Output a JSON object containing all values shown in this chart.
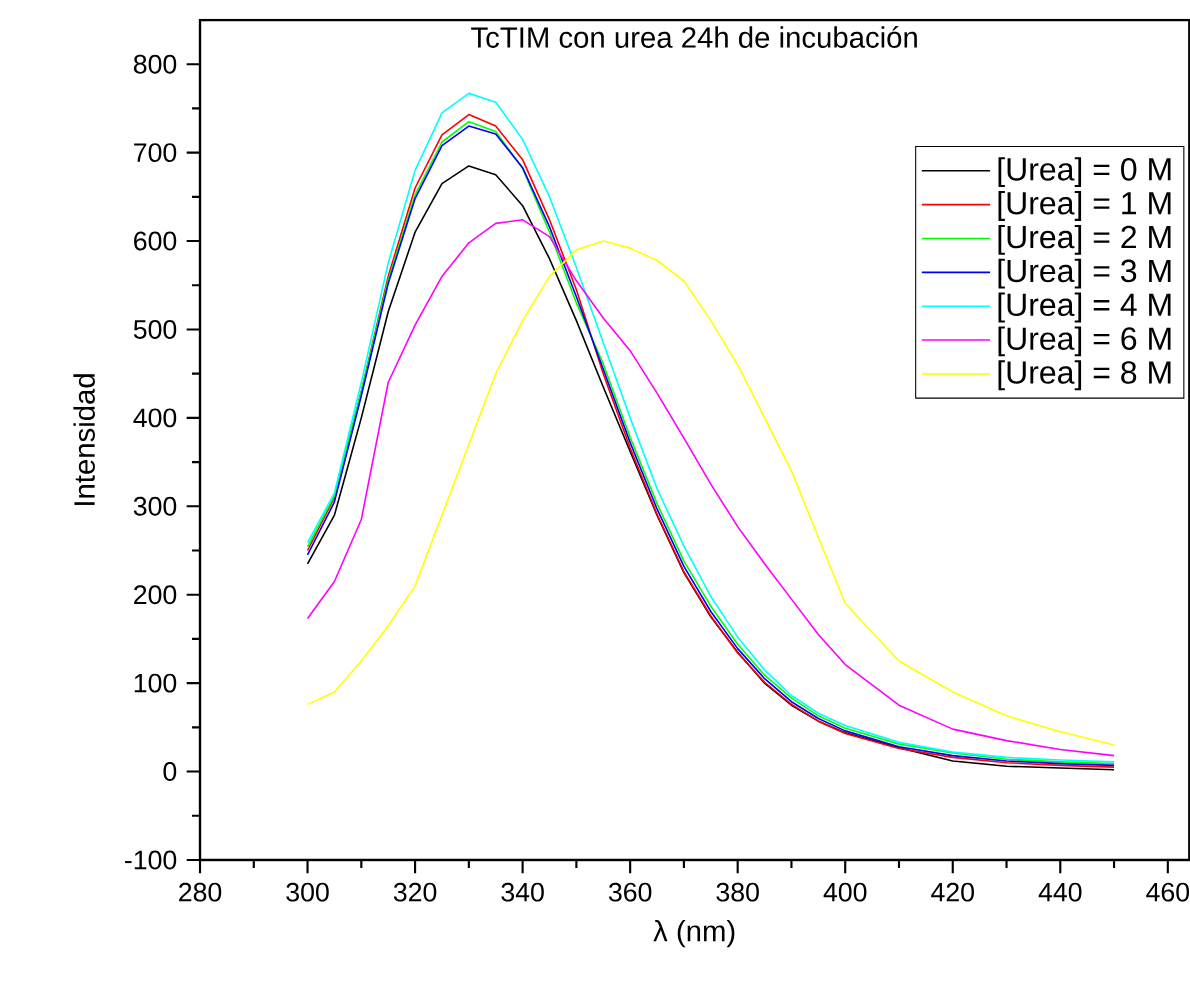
{
  "chart_data": {
    "type": "line",
    "title": "TcTIM con urea  24h de incubación",
    "xlabel": "λ (nm)",
    "ylabel": "Intensidad",
    "x": [
      300,
      305,
      310,
      315,
      320,
      325,
      330,
      335,
      340,
      345,
      350,
      355,
      360,
      365,
      370,
      375,
      380,
      385,
      390,
      395,
      400,
      410,
      420,
      430,
      440,
      450
    ],
    "series": [
      {
        "name": "[Urea] = 0 M",
        "color": "#000000",
        "values": [
          235,
          290,
          400,
          520,
          610,
          665,
          685,
          675,
          640,
          580,
          510,
          435,
          362,
          290,
          225,
          175,
          135,
          100,
          75,
          57,
          44,
          27,
          12,
          6,
          4,
          2
        ]
      },
      {
        "name": "[Urea] = 1 M",
        "color": "#ff0000",
        "values": [
          250,
          310,
          430,
          560,
          660,
          720,
          743,
          730,
          692,
          624,
          545,
          450,
          366,
          291,
          226,
          176,
          134,
          101,
          76,
          57,
          43,
          26,
          16,
          10,
          7,
          5
        ]
      },
      {
        "name": "[Urea] = 2 M",
        "color": "#00ff00",
        "values": [
          254,
          312,
          430,
          556,
          652,
          712,
          735,
          724,
          682,
          610,
          530,
          461,
          378,
          303,
          238,
          187,
          144,
          109,
          83,
          63,
          49,
          31,
          21,
          14,
          11,
          9
        ]
      },
      {
        "name": "[Urea] = 3 M",
        "color": "#0000ff",
        "values": [
          245,
          305,
          425,
          552,
          648,
          708,
          730,
          721,
          683,
          616,
          537,
          455,
          372,
          297,
          232,
          181,
          139,
          105,
          79,
          60,
          46,
          28,
          18,
          12,
          9,
          7
        ]
      },
      {
        "name": "[Urea] = 4 M",
        "color": "#00ffff",
        "values": [
          259,
          315,
          440,
          575,
          680,
          745,
          767,
          757,
          715,
          650,
          570,
          485,
          400,
          320,
          255,
          198,
          152,
          115,
          86,
          66,
          52,
          33,
          22,
          16,
          13,
          11
        ]
      },
      {
        "name": "[Urea] = 6 M",
        "color": "#ff00ff",
        "values": [
          173,
          215,
          285,
          440,
          505,
          560,
          598,
          620,
          624,
          605,
          555,
          513,
          476,
          428,
          377,
          325,
          277,
          235,
          195,
          155,
          121,
          75,
          48,
          35,
          25,
          18
        ]
      },
      {
        "name": "[Urea] = 8 M",
        "color": "#ffff00",
        "values": [
          76,
          90,
          125,
          165,
          210,
          290,
          370,
          450,
          510,
          560,
          590,
          600,
          592,
          578,
          555,
          510,
          460,
          400,
          340,
          265,
          190,
          125,
          90,
          63,
          45,
          30
        ]
      }
    ],
    "xlim": [
      280,
      464
    ],
    "ylim": [
      -100,
      850
    ],
    "xticks": [
      280,
      300,
      320,
      340,
      360,
      380,
      400,
      420,
      440,
      460
    ],
    "yticks": [
      -100,
      0,
      100,
      200,
      300,
      400,
      500,
      600,
      700,
      800
    ],
    "grid": false,
    "legend": "top right",
    "marker": "none",
    "line_style": "solid"
  }
}
